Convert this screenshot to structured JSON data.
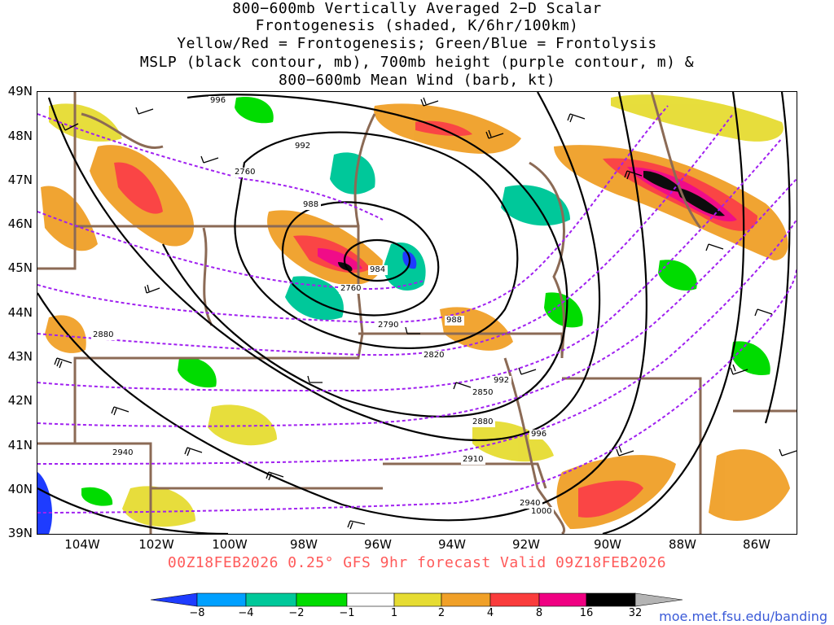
{
  "title": {
    "line1": "800−600mb Vertically Averaged 2−D Scalar",
    "line2": "Frontogenesis (shaded, K/6hr/100km)",
    "line3": "Yellow/Red = Frontogenesis;  Green/Blue = Frontolysis",
    "line4": "MSLP (black contour, mb), 700mb height (purple contour, m) &",
    "line5": "800−600mb Mean Wind (barb, kt)"
  },
  "latitudes": [
    "49N",
    "48N",
    "47N",
    "46N",
    "45N",
    "44N",
    "43N",
    "42N",
    "41N",
    "40N",
    "39N"
  ],
  "longitudes": [
    "104W",
    "102W",
    "100W",
    "98W",
    "96W",
    "94W",
    "92W",
    "90W",
    "88W",
    "86W"
  ],
  "valid_line": "00Z18FEB2026 0.25° GFS 9hr forecast Valid 09Z18FEB2026",
  "colorbar": {
    "labels": [
      "−8",
      "−4",
      "−2",
      "−1",
      "1",
      "2",
      "4",
      "8",
      "16",
      "32"
    ],
    "colors": [
      "#1e3cff",
      "#00a0ff",
      "#00c89a",
      "#00dc00",
      "#ffffff",
      "#e6dc32",
      "#f0a028",
      "#fa3c3c",
      "#f00082",
      "#000000",
      "#b4b4b4"
    ]
  },
  "mslp_labels": [
    "996",
    "992",
    "988",
    "984",
    "988",
    "992",
    "996",
    "1000"
  ],
  "height_labels": [
    "2760",
    "2760",
    "2790",
    "2820",
    "2850",
    "2880",
    "2880",
    "2910",
    "2940",
    "2940"
  ],
  "url": "moe.met.fsu.edu/banding"
}
